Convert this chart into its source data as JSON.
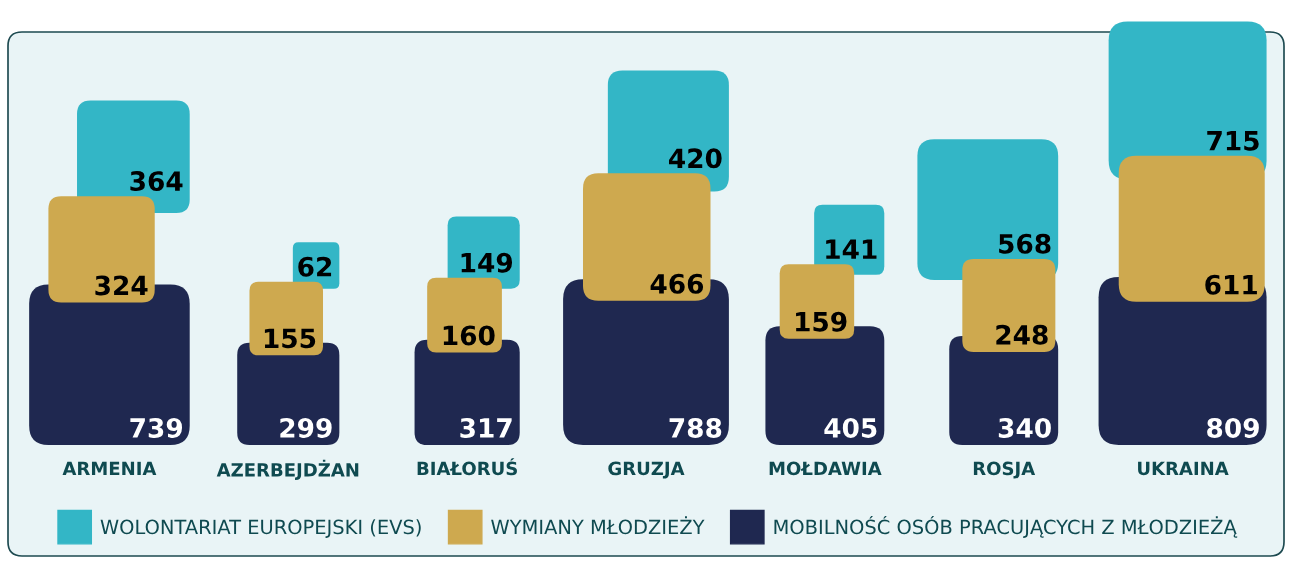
{
  "chart_data": {
    "type": "other",
    "categories": [
      "ARMENIA",
      "AZERBEJDŻAN",
      "BIAŁORUŚ",
      "GRUZJA",
      "MOŁDAWIA",
      "ROSJA",
      "UKRAINA"
    ],
    "series": [
      {
        "name": "WOLONTARIAT EUROPEJSKI (EVS)",
        "color": "#33b6c6",
        "values": [
          364,
          62,
          149,
          420,
          141,
          568,
          715
        ]
      },
      {
        "name": "WYMIANY MŁODZIEŻY",
        "color": "#cea94f",
        "values": [
          324,
          155,
          160,
          466,
          159,
          248,
          611
        ]
      },
      {
        "name": "MOBILNOŚĆ OSÓB PRACUJĄCYCH Z MŁODZIEŻĄ",
        "color": "#1f2850",
        "values": [
          739,
          299,
          317,
          788,
          405,
          340,
          809
        ]
      }
    ],
    "data_labels": true,
    "legend": "bottom"
  }
}
